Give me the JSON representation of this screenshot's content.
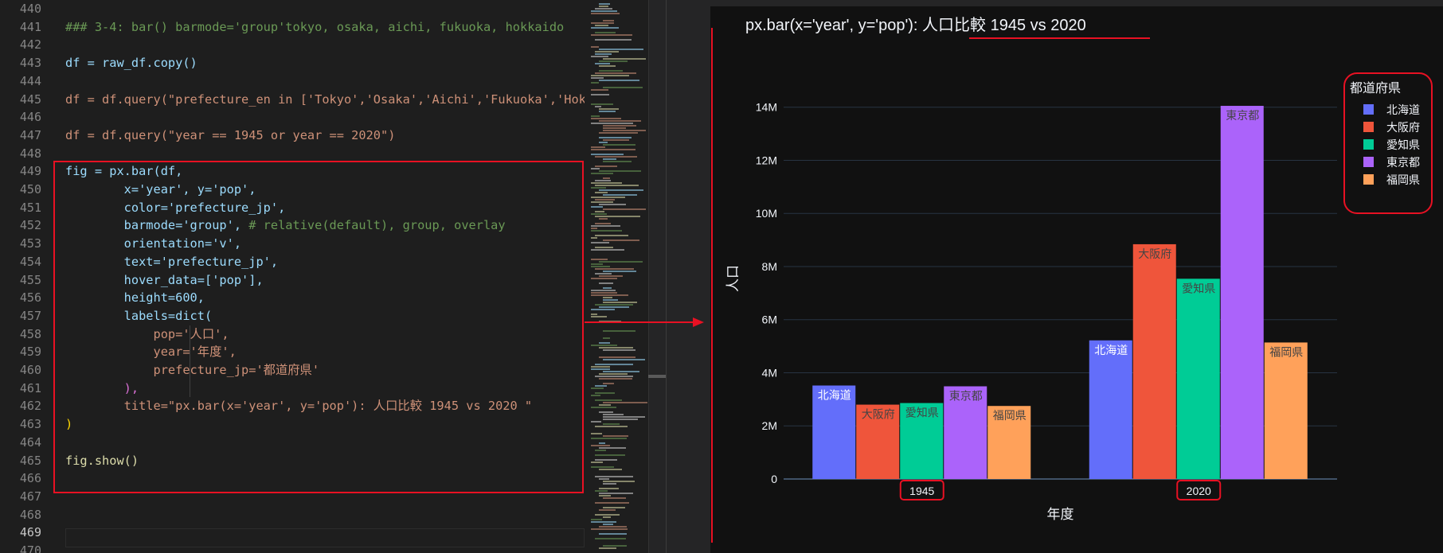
{
  "editor": {
    "line_numbers": [
      "440",
      "441",
      "442",
      "443",
      "444",
      "445",
      "446",
      "447",
      "448",
      "449",
      "450",
      "451",
      "452",
      "453",
      "454",
      "455",
      "456",
      "457",
      "458",
      "459",
      "460",
      "461",
      "462",
      "463",
      "464",
      "465",
      "466",
      "467",
      "468",
      "469",
      "470"
    ],
    "active_line": "469",
    "lines": {
      "l441": "### 3-4: bar() barmode='group'tokyo, osaka, aichi, fukuoka, hokkaido",
      "l443": "df = raw_df.copy()",
      "l445": "df = df.query(\"prefecture_en in ['Tokyo','Osaka','Aichi','Fukuoka','Hok",
      "l447": "df = df.query(\"year == 1945 or year == 2020\")",
      "l449": "fig = px.bar(df,",
      "l450": "        x='year', y='pop',",
      "l451": "        color='prefecture_jp',",
      "l452a": "        barmode='group', ",
      "l452b": "# relative(default), group, overlay",
      "l453": "        orientation='v',",
      "l454": "        text='prefecture_jp',",
      "l455": "        hover_data=['pop'],",
      "l456": "        height=600,",
      "l457": "        labels=dict(",
      "l458": "            pop='人口',",
      "l459": "            year='年度',",
      "l460": "            prefecture_jp='都道府県'",
      "l461": "        ),",
      "l462": "        title=\"px.bar(x='year', y='pop'): 人口比較 1945 vs 2020 \"",
      "l463": ")",
      "l465": "fig.show()"
    }
  },
  "plot": {
    "title_prefix": "px.bar(x='year', y='pop'): ",
    "title_highlight": "人口比較 1945 vs 2020",
    "legend_title": "都道府県",
    "legend_items": [
      {
        "label": "北海道",
        "color": "#636efa"
      },
      {
        "label": "大阪府",
        "color": "#ef553b"
      },
      {
        "label": "愛知県",
        "color": "#00cc96"
      },
      {
        "label": "東京都",
        "color": "#ab63fa"
      },
      {
        "label": "福岡県",
        "color": "#ffa15a"
      }
    ]
  },
  "chart_data": {
    "type": "bar",
    "title": "px.bar(x='year', y='pop'): 人口比較 1945 vs 2020",
    "xlabel": "年度",
    "ylabel": "人口",
    "categories": [
      "1945",
      "2020"
    ],
    "ylim": [
      0,
      14800000
    ],
    "yticks": [
      0,
      2000000,
      4000000,
      6000000,
      8000000,
      10000000,
      12000000,
      14000000
    ],
    "ytick_labels": [
      "0",
      "2M",
      "4M",
      "6M",
      "8M",
      "10M",
      "12M",
      "14M"
    ],
    "grid": true,
    "legend_position": "top-right",
    "series": [
      {
        "name": "北海道",
        "color": "#636efa",
        "values": [
          3520000,
          5220000
        ]
      },
      {
        "name": "大阪府",
        "color": "#ef553b",
        "values": [
          2800000,
          8840000
        ]
      },
      {
        "name": "愛知県",
        "color": "#00cc96",
        "values": [
          2860000,
          7540000
        ]
      },
      {
        "name": "東京都",
        "color": "#ab63fa",
        "values": [
          3490000,
          14050000
        ]
      },
      {
        "name": "福岡県",
        "color": "#ffa15a",
        "values": [
          2750000,
          5140000
        ]
      }
    ]
  }
}
